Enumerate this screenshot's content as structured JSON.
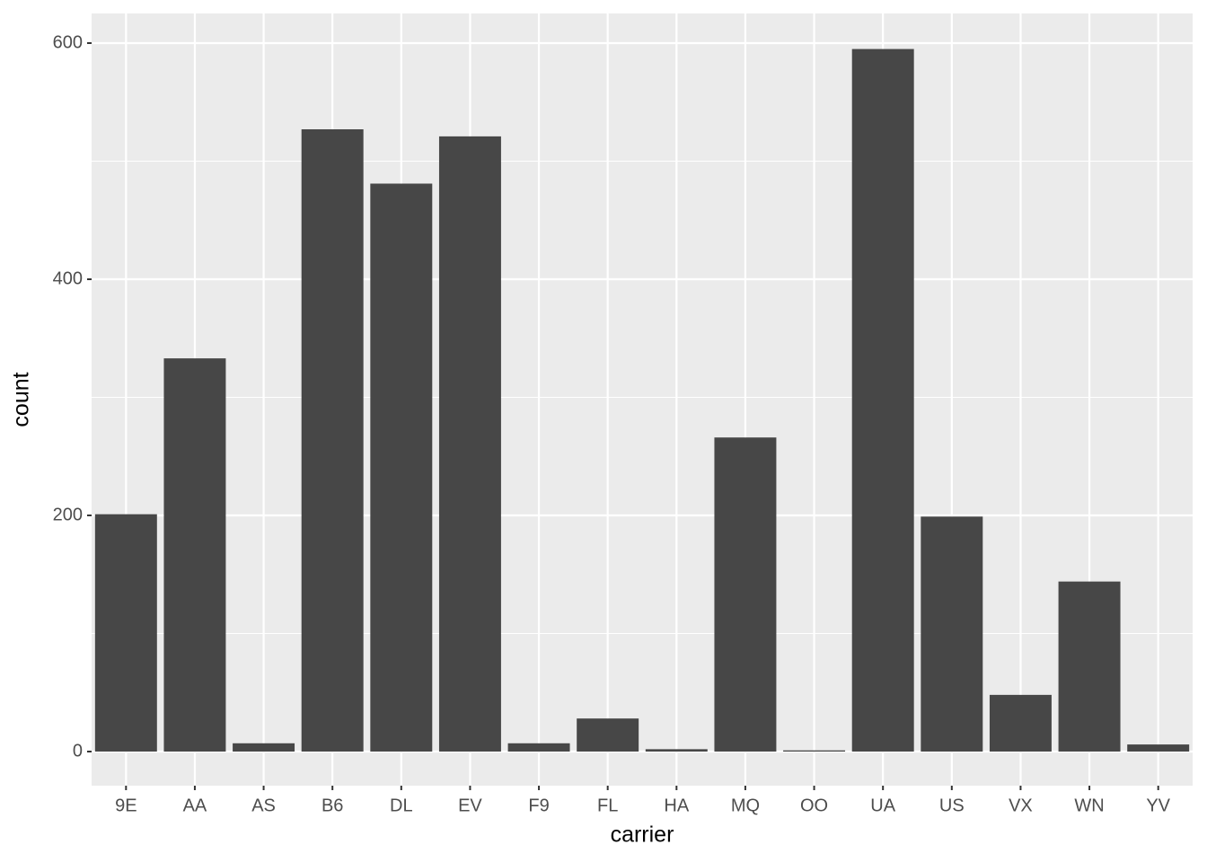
{
  "chart_data": {
    "type": "bar",
    "x_label": "carrier",
    "y_label": "count",
    "categories": [
      "9E",
      "AA",
      "AS",
      "B6",
      "DL",
      "EV",
      "F9",
      "FL",
      "HA",
      "MQ",
      "OO",
      "UA",
      "US",
      "VX",
      "WN",
      "YV"
    ],
    "values": [
      201,
      333,
      7,
      527,
      481,
      521,
      7,
      28,
      2,
      266,
      1,
      595,
      199,
      48,
      144,
      6
    ],
    "color": "#474747",
    "ylim": [
      -28.9,
      625.1
    ],
    "yticks": [
      0,
      200,
      400,
      600
    ],
    "grid": true,
    "minor_grid": true
  }
}
